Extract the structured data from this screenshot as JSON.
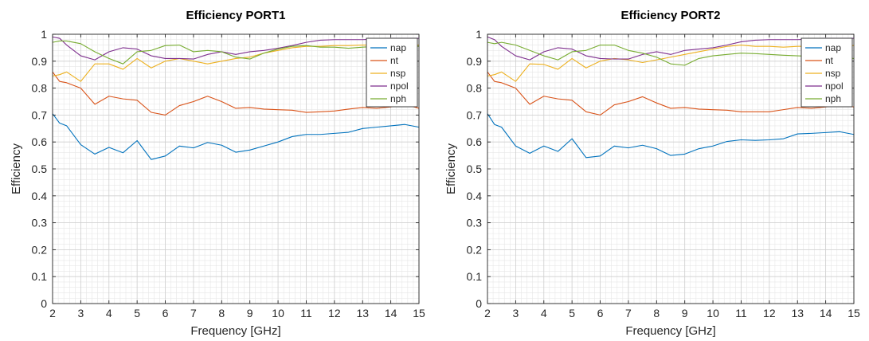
{
  "chart_data": [
    {
      "type": "line",
      "title": "Efficiency PORT1",
      "xlabel": "Frequency [GHz]",
      "ylabel": "Efficiency",
      "xlim": [
        2,
        15
      ],
      "ylim": [
        0,
        1
      ],
      "xticks": [
        "2",
        "3",
        "4",
        "5",
        "6",
        "7",
        "8",
        "9",
        "10",
        "11",
        "12",
        "13",
        "14",
        "15"
      ],
      "yticks": [
        "0",
        "0.1",
        "0.2",
        "0.3",
        "0.4",
        "0.5",
        "0.6",
        "0.7",
        "0.8",
        "0.9",
        "1"
      ],
      "grid": true,
      "legend_position": "top-right",
      "x": [
        2,
        2.25,
        2.5,
        3,
        3.5,
        4,
        4.5,
        5,
        5.5,
        6,
        6.5,
        7,
        7.5,
        8,
        8.5,
        9,
        9.5,
        10,
        10.5,
        11,
        11.5,
        12,
        12.5,
        13,
        13.5,
        14,
        14.5,
        15
      ],
      "series": [
        {
          "name": "nap",
          "color": "#0072BD",
          "values": [
            0.705,
            0.67,
            0.66,
            0.59,
            0.555,
            0.58,
            0.56,
            0.605,
            0.535,
            0.548,
            0.585,
            0.578,
            0.598,
            0.588,
            0.562,
            0.57,
            0.585,
            0.6,
            0.62,
            0.628,
            0.628,
            0.632,
            0.636,
            0.65,
            0.655,
            0.66,
            0.665,
            0.655
          ]
        },
        {
          "name": "nt",
          "color": "#D95319",
          "values": [
            0.86,
            0.825,
            0.82,
            0.8,
            0.74,
            0.77,
            0.76,
            0.755,
            0.71,
            0.7,
            0.735,
            0.75,
            0.77,
            0.75,
            0.725,
            0.728,
            0.722,
            0.72,
            0.718,
            0.71,
            0.712,
            0.715,
            0.722,
            0.728,
            0.725,
            0.73,
            0.74,
            0.725
          ]
        },
        {
          "name": "nsp",
          "color": "#EDB120",
          "values": [
            0.845,
            0.85,
            0.86,
            0.825,
            0.89,
            0.89,
            0.87,
            0.91,
            0.875,
            0.9,
            0.91,
            0.9,
            0.89,
            0.9,
            0.91,
            0.915,
            0.93,
            0.94,
            0.95,
            0.955,
            0.955,
            0.958,
            0.958,
            0.96,
            0.96,
            0.96,
            0.96,
            0.96
          ]
        },
        {
          "name": "npol",
          "color": "#7E2F8E",
          "values": [
            0.99,
            0.985,
            0.96,
            0.92,
            0.905,
            0.935,
            0.95,
            0.945,
            0.92,
            0.91,
            0.91,
            0.908,
            0.925,
            0.935,
            0.925,
            0.935,
            0.94,
            0.948,
            0.958,
            0.97,
            0.978,
            0.98,
            0.98,
            0.98,
            0.982,
            0.985,
            0.985,
            0.985
          ]
        },
        {
          "name": "nph",
          "color": "#77AC30",
          "values": [
            0.97,
            0.975,
            0.975,
            0.965,
            0.935,
            0.91,
            0.89,
            0.935,
            0.94,
            0.958,
            0.96,
            0.935,
            0.94,
            0.935,
            0.915,
            0.908,
            0.93,
            0.945,
            0.955,
            0.958,
            0.952,
            0.952,
            0.948,
            0.952,
            0.955,
            0.958,
            0.96,
            0.955
          ]
        }
      ]
    },
    {
      "type": "line",
      "title": "Efficiency PORT2",
      "xlabel": "Frequency [GHz]",
      "ylabel": "Efficiency",
      "xlim": [
        2,
        15
      ],
      "ylim": [
        0,
        1
      ],
      "xticks": [
        "2",
        "3",
        "4",
        "5",
        "6",
        "7",
        "8",
        "9",
        "10",
        "11",
        "12",
        "13",
        "14",
        "15"
      ],
      "yticks": [
        "0",
        "0.1",
        "0.2",
        "0.3",
        "0.4",
        "0.5",
        "0.6",
        "0.7",
        "0.8",
        "0.9",
        "1"
      ],
      "grid": true,
      "legend_position": "top-right",
      "x": [
        2,
        2.25,
        2.5,
        3,
        3.5,
        4,
        4.5,
        5,
        5.5,
        6,
        6.5,
        7,
        7.5,
        8,
        8.5,
        9,
        9.5,
        10,
        10.5,
        11,
        11.5,
        12,
        12.5,
        13,
        13.5,
        14,
        14.5,
        15
      ],
      "series": [
        {
          "name": "nap",
          "color": "#0072BD",
          "values": [
            0.705,
            0.665,
            0.655,
            0.585,
            0.558,
            0.585,
            0.565,
            0.612,
            0.542,
            0.548,
            0.585,
            0.578,
            0.588,
            0.575,
            0.55,
            0.555,
            0.575,
            0.585,
            0.602,
            0.608,
            0.606,
            0.608,
            0.612,
            0.63,
            0.632,
            0.635,
            0.638,
            0.628
          ]
        },
        {
          "name": "nt",
          "color": "#D95319",
          "values": [
            0.86,
            0.825,
            0.82,
            0.8,
            0.74,
            0.77,
            0.76,
            0.755,
            0.712,
            0.7,
            0.738,
            0.75,
            0.768,
            0.745,
            0.725,
            0.728,
            0.722,
            0.72,
            0.718,
            0.712,
            0.712,
            0.712,
            0.72,
            0.728,
            0.725,
            0.73,
            0.738,
            0.73
          ]
        },
        {
          "name": "nsp",
          "color": "#EDB120",
          "values": [
            0.845,
            0.85,
            0.86,
            0.825,
            0.89,
            0.888,
            0.87,
            0.91,
            0.875,
            0.9,
            0.91,
            0.905,
            0.895,
            0.905,
            0.915,
            0.925,
            0.935,
            0.945,
            0.955,
            0.96,
            0.955,
            0.955,
            0.952,
            0.955,
            0.955,
            0.958,
            0.958,
            0.958
          ]
        },
        {
          "name": "npol",
          "color": "#7E2F8E",
          "values": [
            0.99,
            0.98,
            0.955,
            0.92,
            0.905,
            0.935,
            0.95,
            0.945,
            0.92,
            0.91,
            0.908,
            0.908,
            0.925,
            0.935,
            0.925,
            0.94,
            0.945,
            0.95,
            0.96,
            0.972,
            0.978,
            0.98,
            0.98,
            0.98,
            0.982,
            0.985,
            0.985,
            0.985
          ]
        },
        {
          "name": "nph",
          "color": "#77AC30",
          "values": [
            0.97,
            0.965,
            0.97,
            0.96,
            0.94,
            0.92,
            0.905,
            0.935,
            0.94,
            0.96,
            0.96,
            0.94,
            0.93,
            0.915,
            0.89,
            0.885,
            0.91,
            0.92,
            0.925,
            0.93,
            0.928,
            0.925,
            0.922,
            0.92,
            0.918,
            0.918,
            0.915,
            0.91
          ]
        }
      ]
    }
  ]
}
